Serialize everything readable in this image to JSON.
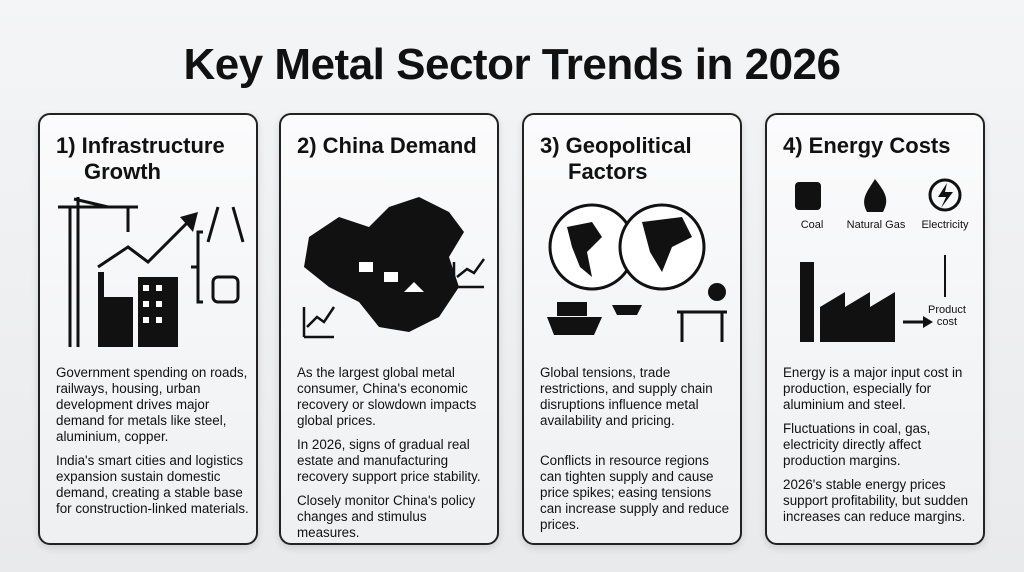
{
  "title": "Key Metal Sector Trends in 2026",
  "cards": [
    {
      "title1": "1) Infrastructure",
      "title2": "Growth",
      "paras": [
        "Government spending on roads, railways, housing, urban development drives major demand for metals like steel, aluminium, copper.",
        "India's smart cities and logistics expansion sustain domestic demand, creating a stable base for construction-linked materials."
      ]
    },
    {
      "title1": "2) China Demand",
      "paras": [
        "As the largest global metal consumer, China's economic recovery or slowdown impacts global prices.",
        "In 2026, signs of gradual real estate and manufacturing recovery support price stability.",
        "Closely monitor China's policy changes and stimulus measures."
      ]
    },
    {
      "title1": "3) Geopolitical",
      "title2": "Factors",
      "paras": [
        "Global tensions, trade restrictions, and supply chain disruptions influence metal availability and pricing.",
        "Conflicts in resource regions can tighten supply and cause price spikes; easing tensions can increase supply and reduce prices."
      ]
    },
    {
      "title1": "4) Energy Costs",
      "labels": {
        "coal": "Coal",
        "gas": "Natural Gas",
        "electricity": "Electricity",
        "product": "Product cost"
      },
      "paras": [
        "Energy is a major input cost in production, especially for aluminium and steel.",
        "Fluctuations in coal, gas, electricity directly affect production margins.",
        "2026's stable energy prices support profitability, but sudden increases can reduce margins."
      ]
    }
  ]
}
